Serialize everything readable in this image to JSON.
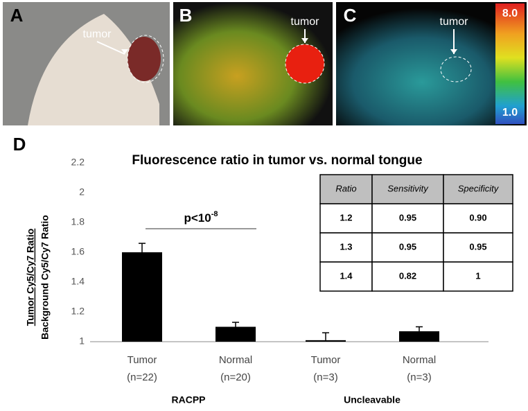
{
  "panels": [
    {
      "label": "A",
      "annotation": "tumor"
    },
    {
      "label": "B",
      "annotation": "tumor"
    },
    {
      "label": "C",
      "annotation": "tumor",
      "colorbar_ticks": [
        {
          "value": 8,
          "label": "8.0"
        },
        {
          "value": 1,
          "label": "1.0"
        }
      ]
    }
  ],
  "chart_data": {
    "type": "bar",
    "panel_label": "D",
    "title": "Fluorescence ratio in tumor vs. normal tongue",
    "y_label_numerator": "Tumor Cy5/Cy7 Ratio",
    "y_label_denominator": "Background Cy5/Cy7 Ratio",
    "categories": [
      "Tumor",
      "Normal",
      "Tumor",
      "Normal"
    ],
    "category_counts": [
      "(n=22)",
      "(n=20)",
      "(n=3)",
      "(n=3)"
    ],
    "groups": [
      "RACPP",
      "Uncleavable"
    ],
    "values": [
      1.6,
      1.1,
      1.01,
      1.07
    ],
    "errors": [
      0.06,
      0.03,
      0.05,
      0.03
    ],
    "color": "#000000",
    "ylim": [
      1,
      2.2
    ],
    "yticks": [
      1,
      1.2,
      1.4,
      1.6,
      1.8,
      2,
      2.2
    ],
    "annotation": {
      "text": "p<10",
      "superscript": "-8"
    },
    "table": {
      "header": [
        "Ratio",
        "Sensitivity",
        "Specificity"
      ],
      "rows": [
        [
          "1.2",
          "0.95",
          "0.90"
        ],
        [
          "1.3",
          "0.95",
          "0.95"
        ],
        [
          "1.4",
          "0.82",
          "1"
        ]
      ]
    }
  }
}
